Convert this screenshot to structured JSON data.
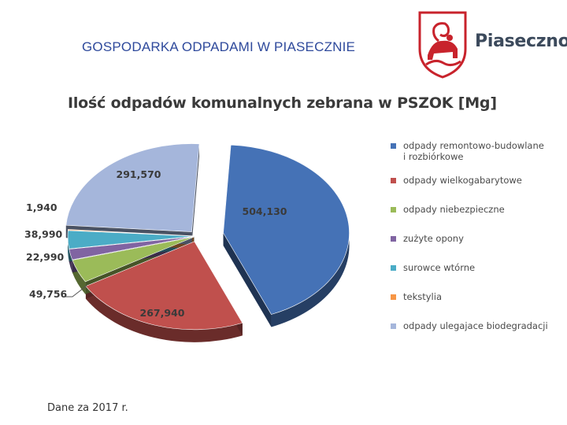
{
  "header": {
    "title": "GOSPODARKA ODPADAMI W PIASECZNIE"
  },
  "brand": {
    "name": "Piaseczno",
    "logo_icon": "ram-coat-of-arms-icon",
    "logo_color": "#c8232c"
  },
  "chart_data": {
    "type": "pie",
    "title": "Ilość odpadów komunalnych zebrana w PSZOK [Mg]",
    "legend_position": "right",
    "slices": [
      {
        "name": "odpady remontowo-budowlane i rozbiórkowe",
        "value": 504.13,
        "label": "504,130",
        "color": "#4572b6"
      },
      {
        "name": "odpady wielkogabarytowe",
        "value": 267.94,
        "label": "267,940",
        "color": "#c0504d"
      },
      {
        "name": "odpady niebezpieczne",
        "value": 49.756,
        "label": "49,756",
        "color": "#9bbb59"
      },
      {
        "name": "zużyte opony",
        "value": 22.99,
        "label": "22,990",
        "color": "#8064a2"
      },
      {
        "name": "surowce wtórne",
        "value": 38.99,
        "label": "38,990",
        "color": "#4bacc6"
      },
      {
        "name": "tekstylia",
        "value": 1.94,
        "label": "1,940",
        "color": "#f79646"
      },
      {
        "name": "odpady ulegające biodegradacji",
        "value": 291.57,
        "label": "291,570",
        "color": "#a5b6db"
      }
    ]
  },
  "legend": {
    "items": [
      {
        "line1": "odpady remontowo-budowlane",
        "line2": "i rozbiórkowe"
      },
      {
        "line1": "odpady wielkogabarytowe",
        "line2": ""
      },
      {
        "line1": "odpady niebezpieczne",
        "line2": ""
      },
      {
        "line1": "zużyte opony",
        "line2": ""
      },
      {
        "line1": "surowce wtórne",
        "line2": ""
      },
      {
        "line1": "tekstylia",
        "line2": ""
      },
      {
        "line1": "odpady ulegajace biodegradacji",
        "line2": ""
      }
    ]
  },
  "footnote": "Dane za 2017 r."
}
